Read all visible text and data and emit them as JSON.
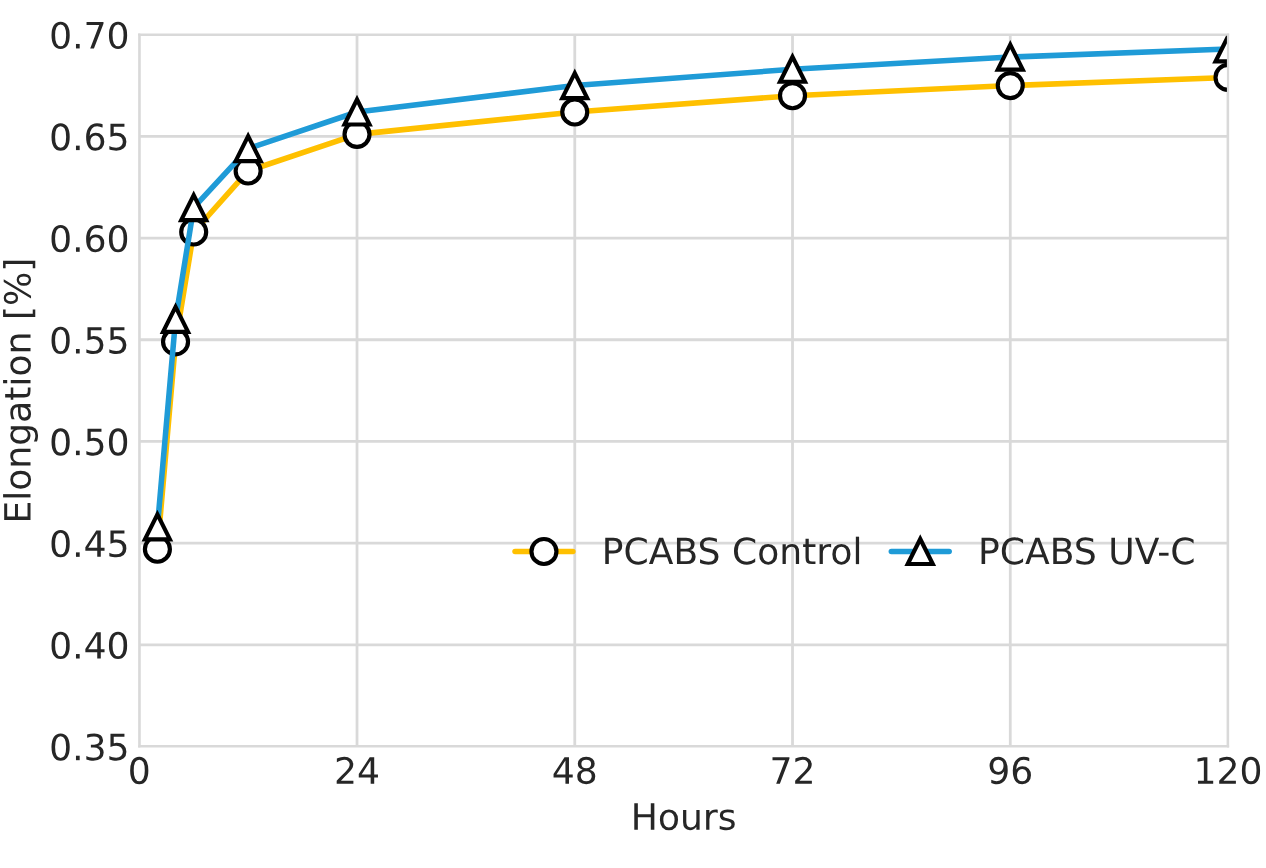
{
  "chart_data": {
    "type": "line",
    "xlabel": "Hours",
    "ylabel": "Elongation [%]",
    "xlim": [
      0,
      120
    ],
    "xticks": [
      0,
      24,
      48,
      72,
      96,
      120
    ],
    "ylim": [
      0.35,
      0.7
    ],
    "yticks": [
      {
        "value": 0.35,
        "label": "0.35"
      },
      {
        "value": 0.4,
        "label": "0.40"
      },
      {
        "value": 0.45,
        "label": "0.45"
      },
      {
        "value": 0.5,
        "label": "0.50"
      },
      {
        "value": 0.55,
        "label": "0.55"
      },
      {
        "value": 0.6,
        "label": "0.60"
      },
      {
        "value": 0.65,
        "label": "0.65"
      },
      {
        "value": 0.7,
        "label": "0.70"
      }
    ],
    "grid": true,
    "legend": "lower right",
    "x": [
      2,
      4,
      6,
      12,
      24,
      48,
      72,
      96,
      120
    ],
    "series": [
      {
        "name": "PCABS Control",
        "color": "#ffc000",
        "marker": "circle",
        "values": [
          0.447,
          0.549,
          0.603,
          0.633,
          0.651,
          0.662,
          0.67,
          0.675,
          0.679
        ]
      },
      {
        "name": "PCABS UV-C",
        "color": "#1f9bd7",
        "marker": "triangle",
        "values": [
          0.458,
          0.56,
          0.615,
          0.644,
          0.662,
          0.675,
          0.683,
          0.689,
          0.693
        ]
      }
    ]
  }
}
